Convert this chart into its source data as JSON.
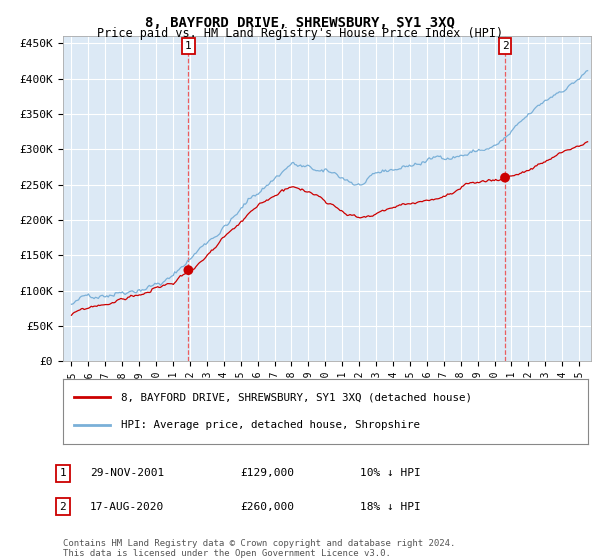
{
  "title": "8, BAYFORD DRIVE, SHREWSBURY, SY1 3XQ",
  "subtitle": "Price paid vs. HM Land Registry's House Price Index (HPI)",
  "title_fontsize": 10,
  "subtitle_fontsize": 8.5,
  "background_color": "#dce9f5",
  "plot_bg_color": "#dce9f5",
  "hpi_color": "#7ab0d8",
  "price_color": "#cc0000",
  "sale1_date": 2001.91,
  "sale1_price": 129000,
  "sale2_date": 2020.62,
  "sale2_price": 260000,
  "ylim": [
    0,
    460000
  ],
  "xlim_start": 1994.5,
  "xlim_end": 2025.7,
  "yticks": [
    0,
    50000,
    100000,
    150000,
    200000,
    250000,
    300000,
    350000,
    400000,
    450000
  ],
  "legend1_label": "8, BAYFORD DRIVE, SHREWSBURY, SY1 3XQ (detached house)",
  "legend2_label": "HPI: Average price, detached house, Shropshire",
  "annotation1_date": "29-NOV-2001",
  "annotation1_price": "£129,000",
  "annotation1_note": "10% ↓ HPI",
  "annotation2_date": "17-AUG-2020",
  "annotation2_price": "£260,000",
  "annotation2_note": "18% ↓ HPI",
  "footer": "Contains HM Land Registry data © Crown copyright and database right 2024.\nThis data is licensed under the Open Government Licence v3.0.",
  "xticks": [
    1995,
    1996,
    1997,
    1998,
    1999,
    2000,
    2001,
    2002,
    2003,
    2004,
    2005,
    2006,
    2007,
    2008,
    2009,
    2010,
    2011,
    2012,
    2013,
    2014,
    2015,
    2016,
    2017,
    2018,
    2019,
    2020,
    2021,
    2022,
    2023,
    2024,
    2025
  ]
}
